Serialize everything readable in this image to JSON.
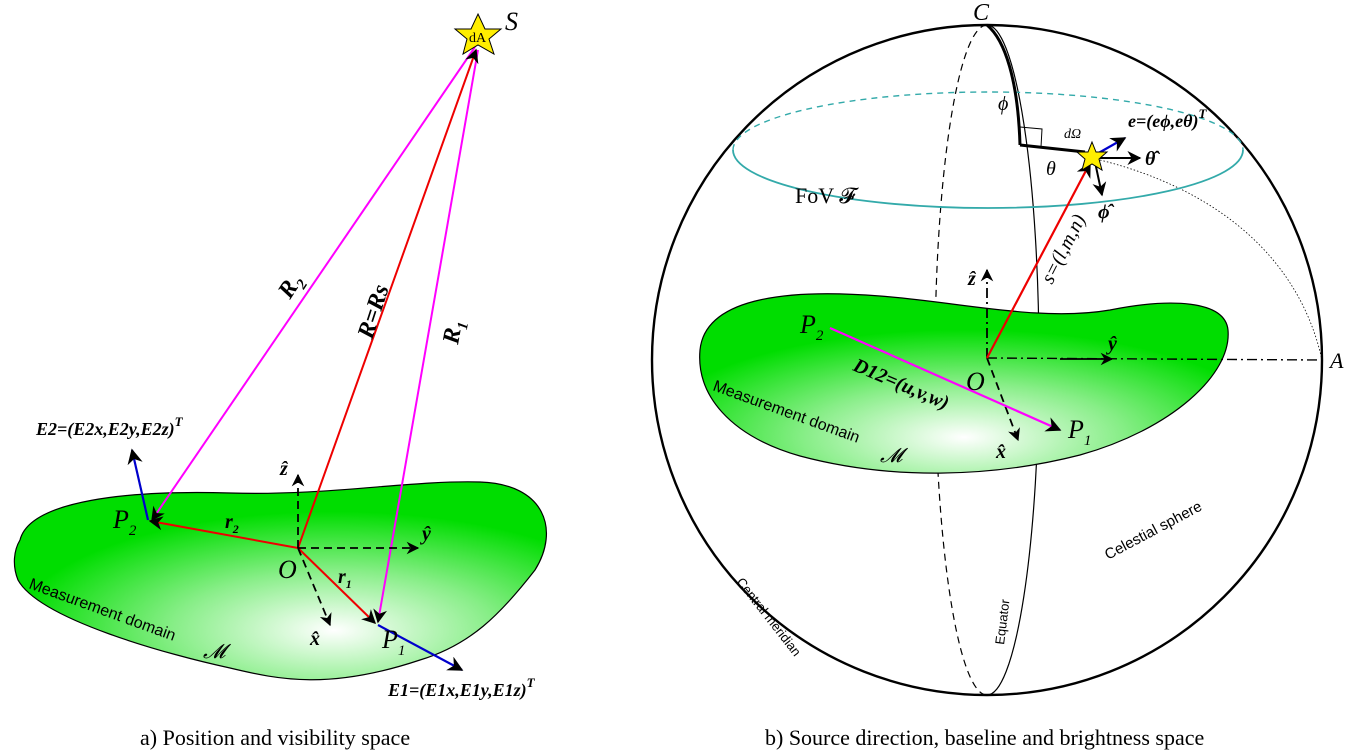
{
  "panel_a": {
    "caption": "a) Position and visibility space",
    "source_label": "S",
    "area_element": "dA",
    "r2_vector": "R",
    "r2_sub": "2",
    "r_vector": "R=Rs",
    "r1_vector": "R",
    "r1_sub": "1",
    "p2_label": "P",
    "p2_sub": "2",
    "p1_label": "P",
    "p1_sub": "1",
    "origin_label": "O",
    "small_r2": "r",
    "small_r2_sub": "2",
    "small_r1": "r",
    "small_r1_sub": "1",
    "axis_x": "x̂",
    "axis_y": "ŷ",
    "axis_z": "ẑ",
    "e2_label": "E2=(E2x,E2y,E2z)",
    "e2_sup": "T",
    "e1_label": "E1=(E1x,E1y,E1z)",
    "e1_sup": "T",
    "domain_text": "Measurement domain",
    "domain_symbol": "𝓜"
  },
  "panel_b": {
    "caption": "b) Source direction, baseline and brightness space",
    "c_label": "C",
    "a_label": "A",
    "origin_label": "O",
    "phi_label": "ϕ",
    "theta_label": "θ",
    "d_omega": "dΩ",
    "e_label": "e=(eϕ,eθ)",
    "e_sup": "T",
    "theta_hat": "θ̂",
    "phi_hat": "ϕ̂",
    "fov_label": "FoV 𝓕",
    "s_label": "s=(l,m,n)",
    "axis_z": "ẑ",
    "axis_y": "ŷ",
    "axis_x": "x̂",
    "p2_label": "P",
    "p2_sub": "2",
    "p1_label": "P",
    "p1_sub": "1",
    "d_label": "D12=(u,v,w)",
    "domain_text": "Measurement domain",
    "domain_symbol": "𝓜",
    "celestial_sphere": "Celestial sphere",
    "equator": "Equator",
    "central_meridian": "Central meridian"
  },
  "colors": {
    "magenta": "#ff00ff",
    "red": "#ee0000",
    "blue": "#0000cc",
    "green_fill": "#00dd00",
    "teal": "#33aaaa",
    "star": "#ffee00"
  }
}
